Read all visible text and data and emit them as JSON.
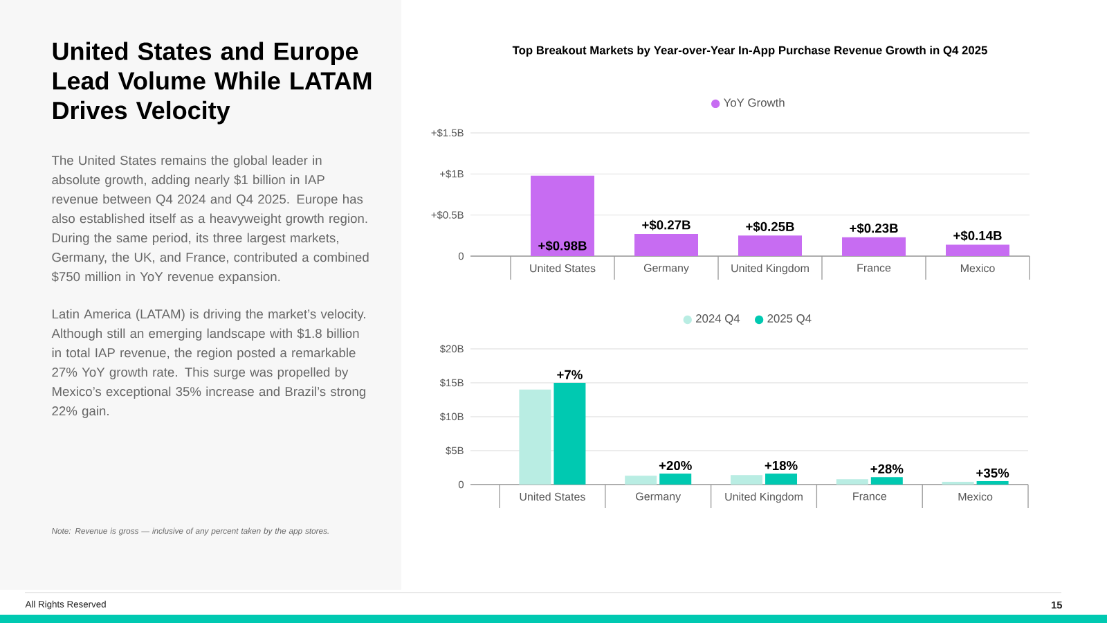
{
  "chart_data": [
    {
      "type": "other",
      "title": "United States and Europe Lead Volume While LATAM Drives Velocity",
      "annotations": [
        "The United States remains the global leader in absolute growth, adding nearly $1 billion in IAP revenue between Q4 2024 and Q4 2025. Europe has also established itself as a heavyweight growth region. During the same period, its three largest markets, Germany, the UK, and France, contributed a combined $750 million in YoY revenue expansion.",
        "Latin America (LATAM) is driving the market’s velocity. Although still an emerging landscape with $1.8 billion in total IAP revenue, the region posted a remarkable 27% YoY growth rate. This surge was propelled by Mexico’s exceptional 35% increase and Brazil’s strong 22% gain.",
        "Note: Revenue is gross — inclusive of any percent taken by the app stores.",
        "All Rights Reserved",
        "15"
      ]
    },
    {
      "type": "bar",
      "title": "Top Breakout Markets by Year-over-Year In-App Purchase Revenue Growth in Q4 2025",
      "categories": [
        "United States",
        "Germany",
        "United Kingdom",
        "France",
        "Mexico"
      ],
      "series": [
        {
          "name": "YoY Growth",
          "color": "#c76cf2",
          "values": [
            0.98,
            0.27,
            0.25,
            0.23,
            0.14
          ],
          "value_labels": [
            "+$0.98B",
            "+$0.27B",
            "+$0.25B",
            "+$0.23B",
            "+$0.14B"
          ]
        }
      ],
      "ylim": [
        0,
        1.5
      ],
      "yticks": [
        0,
        {
          "value": 0.5,
          "label": "+$0.5B"
        },
        {
          "value": 1,
          "label": "+$1B"
        },
        {
          "value": 1.5,
          "label": "+$1.5B"
        }
      ],
      "grid": "y",
      "legend": "top"
    },
    {
      "type": "bar",
      "categories": [
        "United States",
        "Germany",
        "United Kingdom",
        "France",
        "Mexico"
      ],
      "series": [
        {
          "name": "2024 Q4",
          "color": "#b9ede3",
          "values": [
            14.0,
            1.3,
            1.4,
            0.8,
            0.4
          ]
        },
        {
          "name": "2025 Q4",
          "color": "#00c9b1",
          "values": [
            15.0,
            1.6,
            1.6,
            1.1,
            0.5
          ]
        }
      ],
      "annotations": [
        {
          "text": "+7%",
          "x": "United States",
          "y": 15.0
        },
        {
          "text": "+20%",
          "x": "Germany",
          "y": 1.6
        },
        {
          "text": "+18%",
          "x": "United Kingdom",
          "y": 1.6
        },
        {
          "text": "+28%",
          "x": "France",
          "y": 1.1
        },
        {
          "text": "+35%",
          "x": "Mexico",
          "y": 0.5
        }
      ],
      "ylim": [
        0,
        20
      ],
      "yticks": [
        0,
        {
          "value": 5,
          "label": "$5B"
        },
        {
          "value": 10,
          "label": "$10B"
        },
        {
          "value": 15,
          "label": "$15B"
        },
        {
          "value": 20,
          "label": "$20B"
        }
      ],
      "grid": "y",
      "legend": "top"
    }
  ]
}
